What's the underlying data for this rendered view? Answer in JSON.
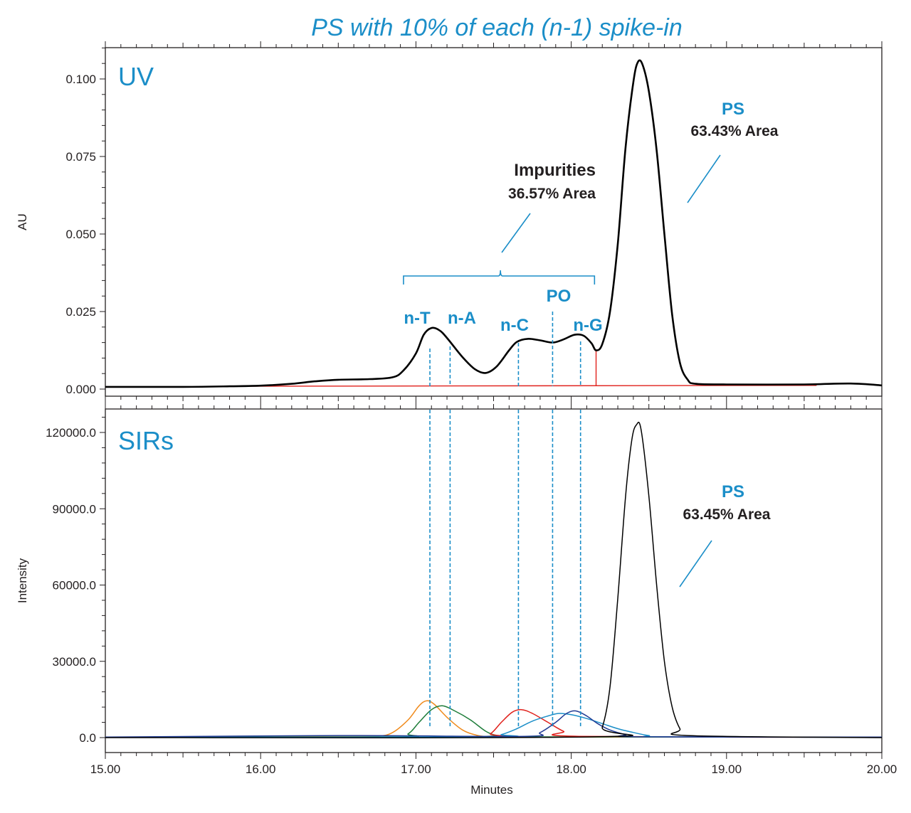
{
  "title": "PS with 10% of each (n-1) spike-in",
  "colors": {
    "accent": "#1b8ec8",
    "trace": "#000000",
    "baseline": "#e0201b",
    "axis": "#231f20"
  },
  "chart_data": [
    {
      "panel": "UV",
      "type": "line",
      "panel_label": "UV",
      "xlabel": "",
      "ylabel": "AU",
      "xlim": [
        15.0,
        20.0
      ],
      "ylim": [
        0.0,
        0.11
      ],
      "yticks": [
        "0.000",
        "0.025",
        "0.050",
        "0.075",
        "0.100"
      ],
      "ytick_values": [
        0.0,
        0.025,
        0.05,
        0.075,
        0.1
      ],
      "series": [
        {
          "color": "#000000",
          "x": [
            15.0,
            15.5,
            15.8,
            16.0,
            16.2,
            16.35,
            16.5,
            16.7,
            16.85,
            16.92,
            17.0,
            17.05,
            17.1,
            17.15,
            17.2,
            17.3,
            17.38,
            17.45,
            17.52,
            17.6,
            17.65,
            17.72,
            17.8,
            17.88,
            17.95,
            18.02,
            18.08,
            18.13,
            18.16,
            18.2,
            18.25,
            18.3,
            18.35,
            18.4,
            18.43,
            18.46,
            18.5,
            18.55,
            18.6,
            18.65,
            18.7,
            18.75,
            18.8,
            19.0,
            19.5,
            19.8,
            20.0
          ],
          "y": [
            0.0007,
            0.0007,
            0.0009,
            0.0011,
            0.0017,
            0.0025,
            0.003,
            0.0032,
            0.0038,
            0.006,
            0.0115,
            0.0175,
            0.0197,
            0.019,
            0.0165,
            0.0103,
            0.0064,
            0.0052,
            0.0073,
            0.0125,
            0.0152,
            0.0162,
            0.0157,
            0.015,
            0.016,
            0.0175,
            0.0172,
            0.0148,
            0.0125,
            0.0145,
            0.025,
            0.047,
            0.078,
            0.099,
            0.1055,
            0.1045,
            0.096,
            0.077,
            0.05,
            0.024,
            0.0085,
            0.003,
            0.0017,
            0.0015,
            0.0015,
            0.0018,
            0.0012
          ]
        }
      ],
      "baseline": {
        "color": "#e0201b",
        "x": [
          15.75,
          19.58
        ],
        "y": [
          0.0009,
          0.0012
        ],
        "split_x": 18.16
      },
      "annotations": {
        "impurities": {
          "title": "Impurities",
          "area": "36.57% Area",
          "bracket_x": [
            16.92,
            18.15
          ]
        },
        "ps": {
          "name": "PS",
          "area": "63.43% Area"
        },
        "peaks": [
          {
            "name": "n-T",
            "x": 17.09
          },
          {
            "name": "n-A",
            "x": 17.22
          },
          {
            "name": "n-C",
            "x": 17.66
          },
          {
            "name": "PO",
            "x": 17.88
          },
          {
            "name": "n-G",
            "x": 18.06
          }
        ]
      }
    },
    {
      "panel": "SIRs",
      "type": "line",
      "panel_label": "SIRs",
      "xlabel": "Minutes",
      "ylabel": "Intensity",
      "xlim": [
        15.0,
        20.0
      ],
      "ylim": [
        -1500,
        128000
      ],
      "xticks": [
        "15.00",
        "16.00",
        "17.00",
        "18.00",
        "19.00",
        "20.00"
      ],
      "xtick_values": [
        15,
        16,
        17,
        18,
        19,
        20
      ],
      "yticks": [
        "0.0",
        "30000.0",
        "60000.0",
        "90000.0",
        "120000.0"
      ],
      "ytick_values": [
        0,
        30000,
        60000,
        90000,
        120000
      ],
      "series": [
        {
          "color": "#f08b1d",
          "x": [
            15.0,
            16.5,
            16.75,
            16.85,
            16.95,
            17.02,
            17.07,
            17.12,
            17.2,
            17.3,
            17.4,
            17.5,
            17.7,
            20.0
          ],
          "y": [
            200,
            400,
            600,
            2000,
            7000,
            12500,
            14500,
            13000,
            8000,
            3000,
            800,
            300,
            200,
            200
          ]
        },
        {
          "color": "#1e7d3a",
          "x": [
            15.0,
            16.85,
            16.95,
            17.02,
            17.1,
            17.17,
            17.25,
            17.35,
            17.45,
            17.52,
            17.6,
            20.0
          ],
          "y": [
            200,
            300,
            1500,
            6000,
            11000,
            12500,
            10500,
            7000,
            2500,
            800,
            300,
            200
          ]
        },
        {
          "color": "#e0201b",
          "x": [
            15.0,
            17.4,
            17.48,
            17.55,
            17.62,
            17.68,
            17.75,
            17.85,
            17.95,
            18.05,
            20.0
          ],
          "y": [
            100,
            200,
            1500,
            6000,
            10000,
            11000,
            9500,
            6000,
            2500,
            500,
            100
          ]
        },
        {
          "color": "#1b8ec8",
          "x": [
            15.0,
            17.45,
            17.55,
            17.65,
            17.75,
            17.85,
            17.92,
            18.0,
            18.1,
            18.2,
            18.3,
            18.4,
            18.5,
            18.6,
            20.0
          ],
          "y": [
            100,
            300,
            1200,
            3500,
            6500,
            8500,
            9500,
            9000,
            7500,
            5500,
            3500,
            2000,
            800,
            300,
            100
          ]
        },
        {
          "color": "#1f3a93",
          "x": [
            15.0,
            16.5,
            17.7,
            17.8,
            17.9,
            17.97,
            18.03,
            18.1,
            18.17,
            18.25,
            18.35,
            18.45,
            20.0
          ],
          "y": [
            200,
            800,
            500,
            2000,
            6000,
            9500,
            10500,
            8500,
            5500,
            3000,
            1200,
            300,
            200
          ]
        },
        {
          "color": "#000000",
          "x": [
            15.0,
            18.15,
            18.2,
            18.25,
            18.3,
            18.35,
            18.39,
            18.42,
            18.45,
            18.5,
            18.55,
            18.6,
            18.65,
            18.7,
            18.75,
            20.0
          ],
          "y": [
            0,
            300,
            4000,
            20000,
            55000,
            95000,
            117000,
            123000,
            121000,
            95000,
            60000,
            30000,
            12000,
            3500,
            800,
            0
          ]
        }
      ],
      "annotations": {
        "ps": {
          "name": "PS",
          "area": "63.45% Area"
        }
      }
    }
  ]
}
